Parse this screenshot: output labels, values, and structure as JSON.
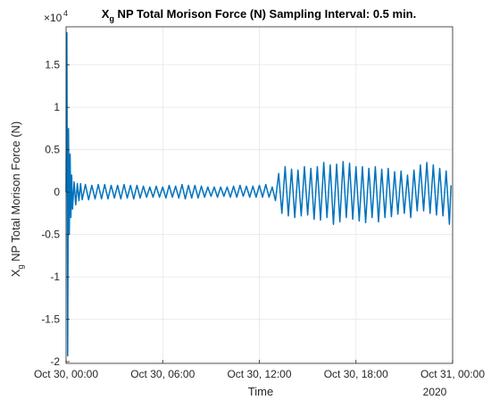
{
  "chart_data": {
    "type": "line",
    "title_main": "X",
    "title_sub": "g",
    "title_rest": " NP Total Morison Force (N) Sampling Interval: 0.5 min.",
    "xlabel": "Time",
    "ylabel_main": "X",
    "ylabel_sub": "g",
    "ylabel_rest": " NP Total Morison Force (N)",
    "y_exponent_base": "×10",
    "y_exponent": "4",
    "x_secondary_label": "2020",
    "xlim": [
      0,
      24
    ],
    "ylim": [
      -2.02,
      1.95
    ],
    "x_ticks": [
      0,
      6,
      12,
      18,
      24
    ],
    "x_tick_labels": [
      "Oct 30, 00:00",
      "Oct 30, 06:00",
      "Oct 30, 12:00",
      "Oct 30, 18:00",
      "Oct 31, 00:00"
    ],
    "y_ticks": [
      -2,
      -1.5,
      -1,
      -0.5,
      0,
      0.5,
      1,
      1.5
    ],
    "y_tick_labels": [
      "-2",
      "-1.5",
      "-1",
      "-0.5",
      "0",
      "0.5",
      "1",
      "1.5"
    ],
    "grid": true,
    "series": [
      {
        "color": "#0072bd",
        "x": [
          0,
          0.05,
          0.1,
          0.15,
          0.2,
          0.25,
          0.3,
          0.35,
          0.4,
          0.5,
          0.6,
          0.7,
          0.8,
          0.9,
          1.0,
          1.2,
          1.4,
          1.6,
          1.8,
          2.0,
          2.2,
          2.4,
          2.6,
          2.8,
          3.0,
          3.2,
          3.4,
          3.6,
          3.8,
          4.0,
          4.2,
          4.4,
          4.6,
          4.8,
          5.0,
          5.2,
          5.4,
          5.6,
          5.8,
          6.0,
          6.2,
          6.4,
          6.6,
          6.8,
          7.0,
          7.2,
          7.4,
          7.6,
          7.8,
          8.0,
          8.2,
          8.4,
          8.6,
          8.8,
          9.0,
          9.2,
          9.4,
          9.6,
          9.8,
          10.0,
          10.2,
          10.4,
          10.6,
          10.8,
          11.0,
          11.2,
          11.4,
          11.6,
          11.8,
          12.0,
          12.2,
          12.4,
          12.6,
          12.8,
          13.0,
          13.2,
          13.4,
          13.6,
          13.8,
          14.0,
          14.2,
          14.4,
          14.6,
          14.8,
          15.0,
          15.2,
          15.4,
          15.6,
          15.8,
          16.0,
          16.2,
          16.4,
          16.6,
          16.8,
          17.0,
          17.2,
          17.4,
          17.6,
          17.8,
          18.0,
          18.2,
          18.4,
          18.6,
          18.8,
          19.0,
          19.2,
          19.4,
          19.6,
          19.8,
          20.0,
          20.2,
          20.4,
          20.6,
          20.8,
          21.0,
          21.2,
          21.4,
          21.6,
          21.8,
          22.0,
          22.2,
          22.4,
          22.6,
          22.8,
          23.0,
          23.2,
          23.4,
          23.6,
          23.8,
          23.9
        ],
        "y": [
          0,
          1.88,
          -1.93,
          0.75,
          -0.5,
          0.45,
          -0.3,
          0.2,
          -0.2,
          0.12,
          -0.15,
          0.1,
          -0.1,
          0.1,
          -0.09,
          0.09,
          -0.09,
          0.08,
          -0.08,
          0.09,
          -0.08,
          0.09,
          -0.08,
          0.08,
          -0.07,
          0.08,
          -0.08,
          0.09,
          -0.07,
          0.08,
          -0.08,
          0.08,
          -0.07,
          0.07,
          -0.06,
          0.06,
          -0.06,
          0.07,
          -0.06,
          0.06,
          -0.07,
          0.08,
          -0.06,
          0.07,
          -0.07,
          0.09,
          -0.08,
          0.08,
          -0.07,
          0.08,
          -0.07,
          0.07,
          -0.06,
          0.06,
          -0.05,
          0.06,
          -0.06,
          0.06,
          -0.05,
          0.06,
          -0.06,
          0.07,
          -0.06,
          0.08,
          -0.05,
          0.07,
          -0.06,
          0.07,
          -0.06,
          0.08,
          -0.06,
          0.09,
          -0.06,
          0.06,
          -0.1,
          0.22,
          -0.25,
          0.3,
          -0.28,
          0.27,
          -0.3,
          0.26,
          -0.28,
          0.3,
          -0.27,
          0.28,
          -0.32,
          0.3,
          -0.33,
          0.35,
          -0.3,
          0.32,
          -0.38,
          0.33,
          -0.35,
          0.36,
          -0.3,
          0.34,
          -0.32,
          0.3,
          -0.34,
          0.3,
          -0.36,
          0.28,
          -0.3,
          0.3,
          -0.35,
          0.27,
          -0.3,
          0.28,
          -0.29,
          0.24,
          -0.26,
          0.25,
          -0.25,
          0.2,
          -0.3,
          0.26,
          -0.22,
          0.32,
          -0.22,
          0.35,
          -0.25,
          0.32,
          -0.27,
          0.28,
          -0.28,
          0.25,
          -0.38,
          0.08
        ]
      }
    ]
  }
}
